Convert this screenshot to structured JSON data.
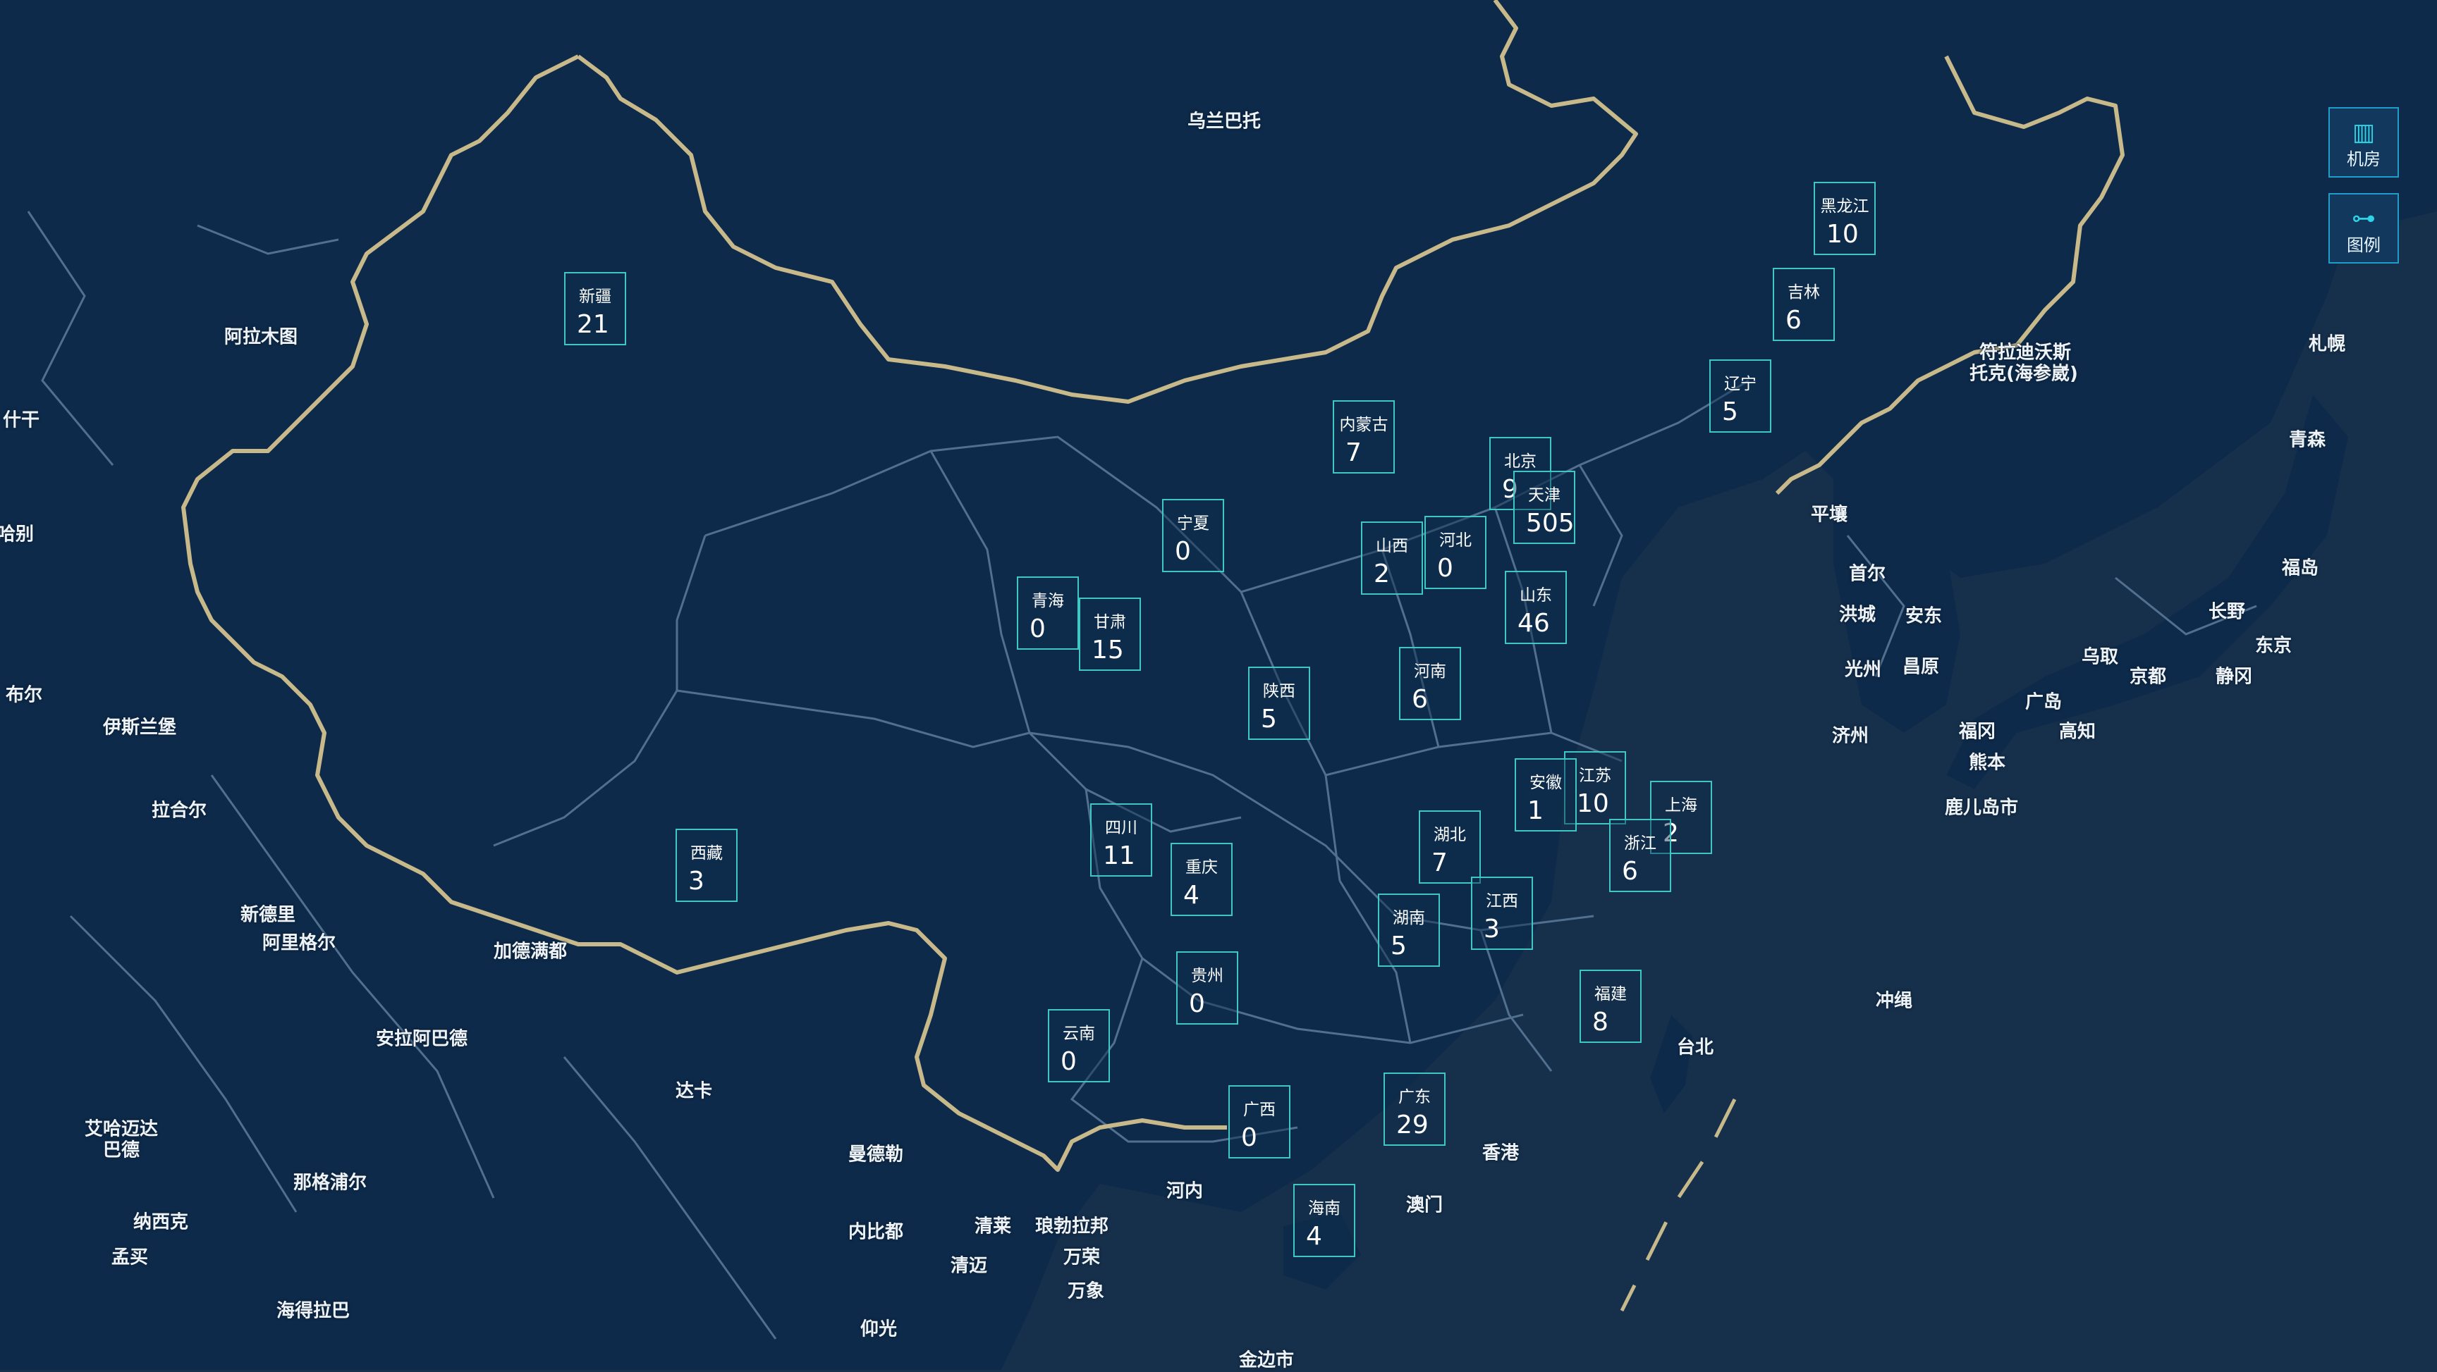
{
  "colors": {
    "water": "#16304c",
    "land": "#0e2a4a",
    "border": "#c8b98a",
    "province_line": "#51708f",
    "card_border": "#3fc7c4"
  },
  "toolbar": [
    {
      "icon": "server-rack-icon",
      "glyph": "▥",
      "label": "机房"
    },
    {
      "icon": "legend-icon",
      "glyph": "⊶",
      "label": "图例"
    }
  ],
  "provinces": [
    {
      "name": "新疆",
      "count": "21"
    },
    {
      "name": "黑龙江",
      "count": "10"
    },
    {
      "name": "吉林",
      "count": "6"
    },
    {
      "name": "辽宁",
      "count": "5"
    },
    {
      "name": "内蒙古",
      "count": "7"
    },
    {
      "name": "北京",
      "count": "9"
    },
    {
      "name": "天津",
      "count": "505"
    },
    {
      "name": "宁夏",
      "count": "0"
    },
    {
      "name": "山西",
      "count": "2"
    },
    {
      "name": "河北",
      "count": "0"
    },
    {
      "name": "青海",
      "count": "0"
    },
    {
      "name": "甘肃",
      "count": "15"
    },
    {
      "name": "山东",
      "count": "46"
    },
    {
      "name": "陕西",
      "count": "5"
    },
    {
      "name": "河南",
      "count": "6"
    },
    {
      "name": "江苏",
      "count": "10"
    },
    {
      "name": "安徽",
      "count": "1"
    },
    {
      "name": "上海",
      "count": "2"
    },
    {
      "name": "四川",
      "count": "11"
    },
    {
      "name": "湖北",
      "count": "7"
    },
    {
      "name": "浙江",
      "count": "6"
    },
    {
      "name": "西藏",
      "count": "3"
    },
    {
      "name": "重庆",
      "count": "4"
    },
    {
      "name": "湖南",
      "count": "5"
    },
    {
      "name": "江西",
      "count": "3"
    },
    {
      "name": "贵州",
      "count": "0"
    },
    {
      "name": "福建",
      "count": "8"
    },
    {
      "name": "云南",
      "count": "0"
    },
    {
      "name": "广西",
      "count": "0"
    },
    {
      "name": "广东",
      "count": "29"
    },
    {
      "name": "海南",
      "count": "4"
    }
  ],
  "place_labels": [
    "乌兰巴托",
    "阿拉木图",
    "什干",
    "哈别",
    "布尔",
    "伊斯兰堡",
    "拉合尔",
    "新德里",
    "阿里格尔",
    "加德满都",
    "安拉阿巴德",
    "达卡",
    "艾哈迈达",
    "巴德",
    "那格浦尔",
    "纳西克",
    "孟买",
    "海得拉巴",
    "曼德勒",
    "内比都",
    "清莱",
    "琅勃拉邦",
    "万荣",
    "清迈",
    "万象",
    "仰光",
    "河内",
    "金边市",
    "香港",
    "澳门",
    "台北",
    "冲绳",
    "平壤",
    "首尔",
    "洪城",
    "安东",
    "光州",
    "昌原",
    "济州",
    "福冈",
    "熊本",
    "鹿儿岛市",
    "广岛",
    "高知",
    "乌取",
    "京都",
    "长野",
    "东京",
    "静冈",
    "福岛",
    "青森",
    "札幌",
    "符拉迪沃斯",
    "托克(海参崴)"
  ]
}
